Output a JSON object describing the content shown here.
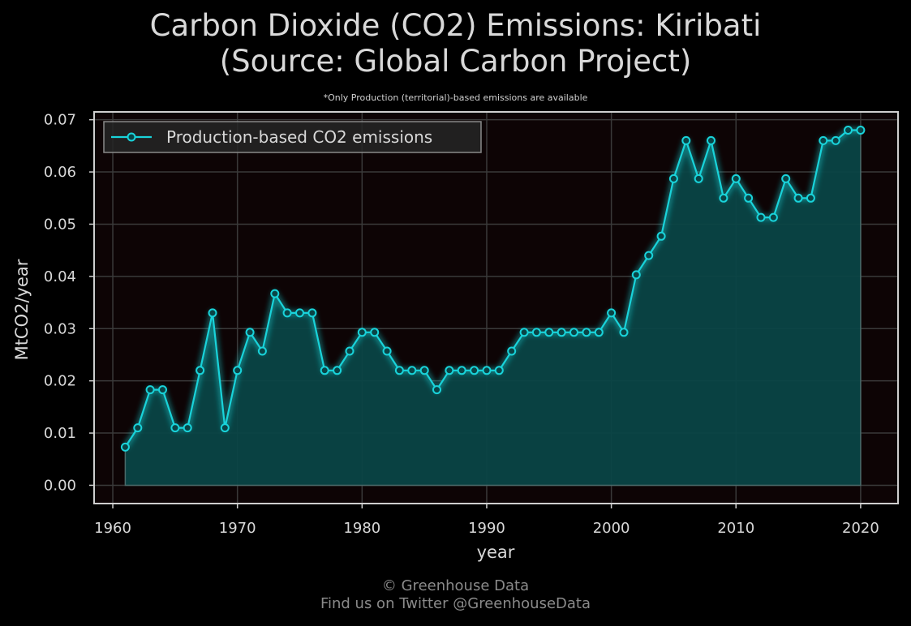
{
  "page": {
    "title_line1": "Carbon Dioxide (CO2) Emissions: Kiribati",
    "title_line2": "(Source: Global Carbon Project)",
    "subtitle": "*Only Production (territorial)-based emissions are available",
    "footer_line1": "© Greenhouse Data",
    "footer_line2": "Find us on Twitter @GreenhouseData"
  },
  "colors": {
    "background": "#000000",
    "plot_background": "#0d0405",
    "line": "#19d3da",
    "fill": "#0a4446",
    "grid": "#3a3a3a",
    "frame": "#cfcfcf",
    "text": "#d8d8d8",
    "footer": "#8a8a8a"
  },
  "chart_data": {
    "type": "area",
    "xlabel": "year",
    "ylabel": "MtCO2/year",
    "xlim": [
      1958.5,
      2023
    ],
    "ylim": [
      -0.0035,
      0.0715
    ],
    "xticks": [
      1960,
      1970,
      1980,
      1990,
      2000,
      2010,
      2020
    ],
    "xtick_labels": [
      "1960",
      "1970",
      "1980",
      "1990",
      "2000",
      "2010",
      "2020"
    ],
    "yticks": [
      0,
      0.01,
      0.02,
      0.03,
      0.04,
      0.05,
      0.06,
      0.07
    ],
    "ytick_labels": [
      "0.00",
      "0.01",
      "0.02",
      "0.03",
      "0.04",
      "0.05",
      "0.06",
      "0.07"
    ],
    "grid": true,
    "legend_position": "top-left",
    "series": [
      {
        "name": "Production-based CO2 emissions",
        "marker": "circle",
        "x": [
          1961,
          1962,
          1963,
          1964,
          1965,
          1966,
          1967,
          1968,
          1969,
          1970,
          1971,
          1972,
          1973,
          1974,
          1975,
          1976,
          1977,
          1978,
          1979,
          1980,
          1981,
          1982,
          1983,
          1984,
          1985,
          1986,
          1987,
          1988,
          1989,
          1990,
          1991,
          1992,
          1993,
          1994,
          1995,
          1996,
          1997,
          1998,
          1999,
          2000,
          2001,
          2002,
          2003,
          2004,
          2005,
          2006,
          2007,
          2008,
          2009,
          2010,
          2011,
          2012,
          2013,
          2014,
          2015,
          2016,
          2017,
          2018,
          2019,
          2020
        ],
        "y": [
          0.0073,
          0.011,
          0.0183,
          0.0183,
          0.011,
          0.011,
          0.022,
          0.033,
          0.011,
          0.022,
          0.0293,
          0.0257,
          0.0367,
          0.033,
          0.033,
          0.033,
          0.022,
          0.022,
          0.0257,
          0.0293,
          0.0293,
          0.0257,
          0.022,
          0.022,
          0.022,
          0.0183,
          0.022,
          0.022,
          0.022,
          0.022,
          0.022,
          0.0257,
          0.0293,
          0.0293,
          0.0293,
          0.0293,
          0.0293,
          0.0293,
          0.0293,
          0.033,
          0.0293,
          0.0403,
          0.044,
          0.0477,
          0.0587,
          0.066,
          0.0587,
          0.066,
          0.055,
          0.0587,
          0.055,
          0.0513,
          0.0513,
          0.0587,
          0.055,
          0.055,
          0.066,
          0.066,
          0.068,
          0.068
        ]
      }
    ]
  }
}
